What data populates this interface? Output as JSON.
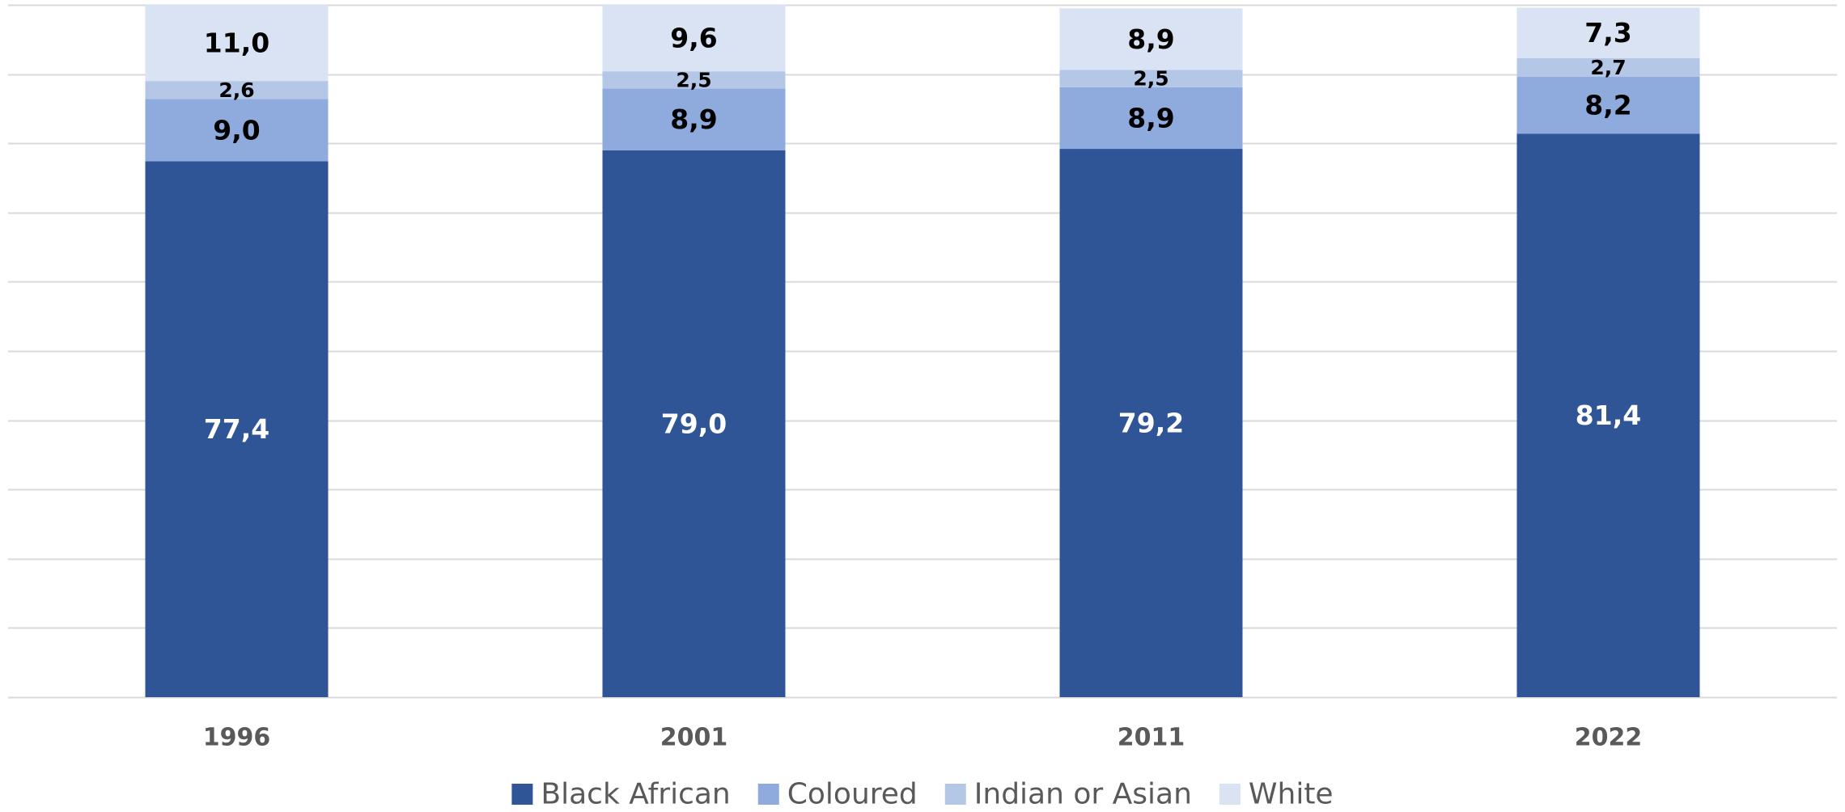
{
  "chart_data": {
    "type": "bar",
    "stacked": true,
    "categories": [
      "1996",
      "2001",
      "2011",
      "2022"
    ],
    "series": [
      {
        "name": "Black African",
        "color": "#2f5597",
        "label_color": "#ffffff",
        "values": [
          77.4,
          79.0,
          79.2,
          81.4
        ],
        "labels": [
          "77,4",
          "79,0",
          "79,2",
          "81,4"
        ]
      },
      {
        "name": "Coloured",
        "color": "#8faadc",
        "label_color": "#000000",
        "values": [
          9.0,
          8.9,
          8.9,
          8.2
        ],
        "labels": [
          "9,0",
          "8,9",
          "8,9",
          "8,2"
        ]
      },
      {
        "name": "Indian or Asian",
        "color": "#b4c7e7",
        "label_color": "#000000",
        "values": [
          2.6,
          2.5,
          2.5,
          2.7
        ],
        "labels": [
          "2,6",
          "2,5",
          "2,5",
          "2,7"
        ]
      },
      {
        "name": "White",
        "color": "#dae3f3",
        "label_color": "#000000",
        "values": [
          11.0,
          9.6,
          8.9,
          7.3
        ],
        "labels": [
          "11,0",
          "9,6",
          "8,9",
          "7,3"
        ]
      }
    ],
    "ylim": [
      0,
      100
    ],
    "y_gridline_step": 10,
    "grid": true,
    "gridline_color": "#d9d9d9",
    "axis_labels_shown": false,
    "legend_position": "bottom"
  }
}
